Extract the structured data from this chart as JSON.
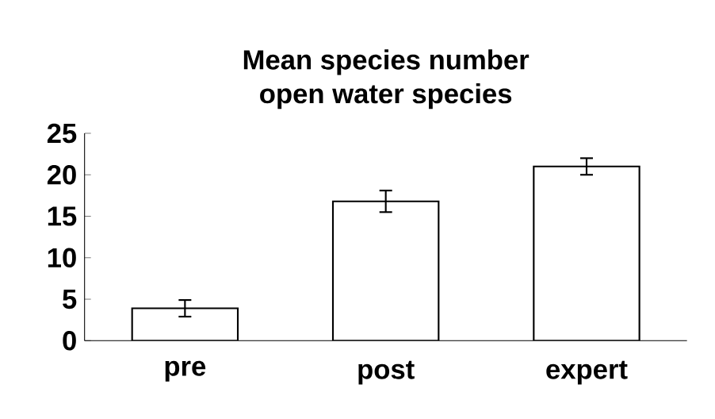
{
  "chart_data": {
    "type": "bar",
    "title": "Mean species number\nopen water species",
    "categories": [
      "pre",
      "post",
      "expert"
    ],
    "values": [
      3.9,
      16.8,
      21.0
    ],
    "errors": [
      1.0,
      1.3,
      1.0
    ],
    "color": "#ffffff",
    "ylim": [
      0,
      25
    ],
    "yticks": [
      0,
      5,
      10,
      15,
      20,
      25
    ],
    "grid": false
  }
}
